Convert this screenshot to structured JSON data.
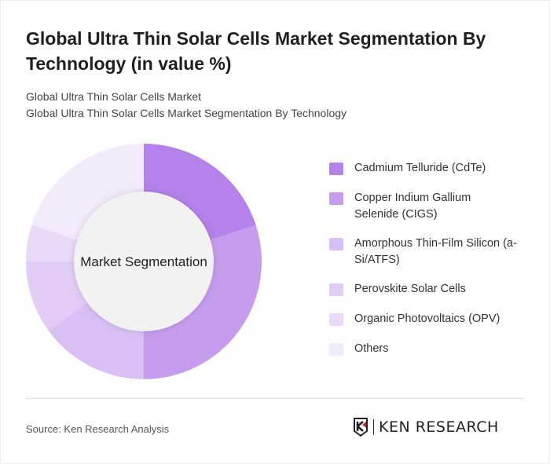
{
  "title": "Global Ultra Thin Solar Cells Market Segmentation By Technology (in value %)",
  "subtitle1": "Global Ultra Thin Solar Cells Market",
  "subtitle2": "Global Ultra Thin Solar Cells Market Segmentation By Technology",
  "source": "Source: Ken Research Analysis",
  "logo_text": "KEN RESEARCH",
  "chart_data": {
    "type": "pie",
    "variant": "donut",
    "center_label": "Market Segmentation",
    "legend_position": "right",
    "categories": [
      "Cadmium Telluride (CdTe)",
      "Copper Indium Gallium Selenide (CIGS)",
      "Amorphous Thin-Film Silicon (a-Si/ATFS)",
      "Perovskite Solar Cells",
      "Organic Photovoltaics (OPV)",
      "Others"
    ],
    "values": [
      20,
      30,
      15,
      10,
      5,
      20
    ],
    "colors": [
      "#b482ea",
      "#c59cee",
      "#d9bff5",
      "#e2ccf6",
      "#ead9f8",
      "#f3ebfb"
    ]
  }
}
